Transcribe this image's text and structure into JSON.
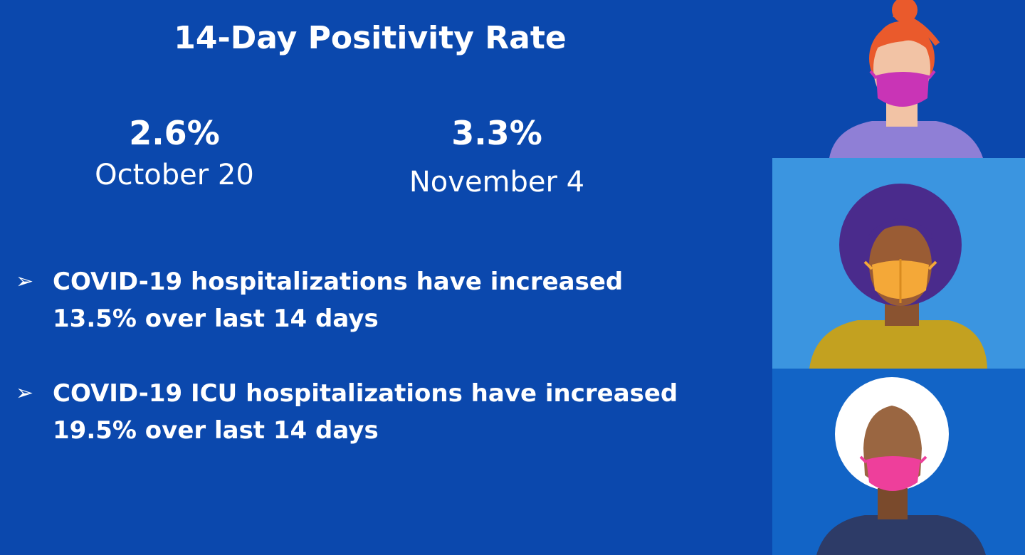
{
  "title": "14-Day Positivity Rate",
  "stats": [
    {
      "value": "2.6%",
      "date": "October 20"
    },
    {
      "value": "3.3%",
      "date": "November 4"
    }
  ],
  "bullets": [
    {
      "marker": "➢",
      "line1": "COVID-19 hospitalizations have increased",
      "line2": "13.5% over last 14 days"
    },
    {
      "marker": "➢",
      "line1": "COVID-19 ICU hospitalizations have increased",
      "line2": "19.5% over last 14 days"
    }
  ],
  "illustration": {
    "people": [
      "person-red-hair-pink-mask-icon",
      "person-afro-orange-mask-icon",
      "person-white-headwrap-pink-mask-icon"
    ],
    "colors": {
      "background": "#0b48ad",
      "panel_mid": "#3b95e0",
      "panel_bottom": "#1264c6"
    }
  }
}
